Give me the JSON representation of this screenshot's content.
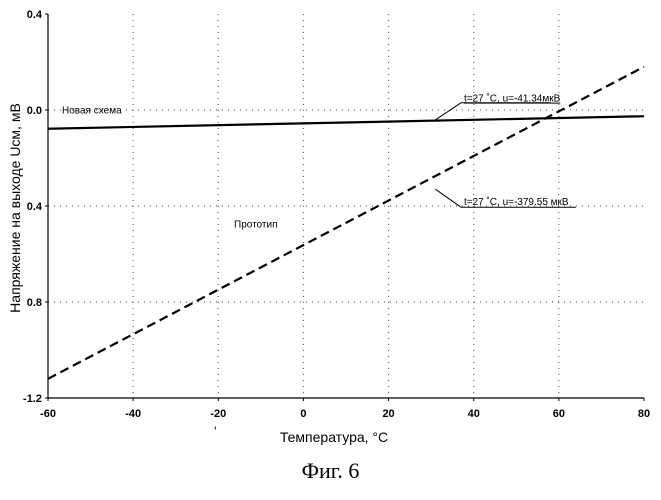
{
  "chart_data": {
    "type": "line",
    "xlabel": "Температура, °С",
    "ylabel": "Напряжение на выходе Uсм, мВ",
    "xlim": [
      -60,
      80
    ],
    "ylim": [
      -1.2,
      0.4
    ],
    "x_ticks": [
      -60,
      -40,
      -20,
      0,
      20,
      40,
      60,
      80
    ],
    "y_ticks": [
      0.4,
      0.0,
      -0.4,
      -0.8,
      -1.2
    ],
    "x_tick_labels": [
      "-60",
      "-40",
      "-20",
      "0",
      "20",
      "40",
      "60",
      "80"
    ],
    "y_tick_labels": [
      "0.4",
      "0.0",
      "0.4",
      "0.8",
      "-1.2"
    ],
    "grid": "dotted",
    "series": [
      {
        "name": "Новая схема",
        "style": "solid",
        "x": [
          -60,
          80
        ],
        "y": [
          -0.078,
          -0.026
        ]
      },
      {
        "name": "Прототип",
        "style": "dashed",
        "x": [
          -60,
          80
        ],
        "y": [
          -1.12,
          0.18
        ]
      }
    ],
    "annotations": [
      {
        "text": "t=27 ˚С, u=-41.34мкВ"
      },
      {
        "text": "t=27 ˚С, u=-379.55 мкВ"
      }
    ]
  },
  "caption": "Фиг. 6",
  "stray_mark": "'"
}
